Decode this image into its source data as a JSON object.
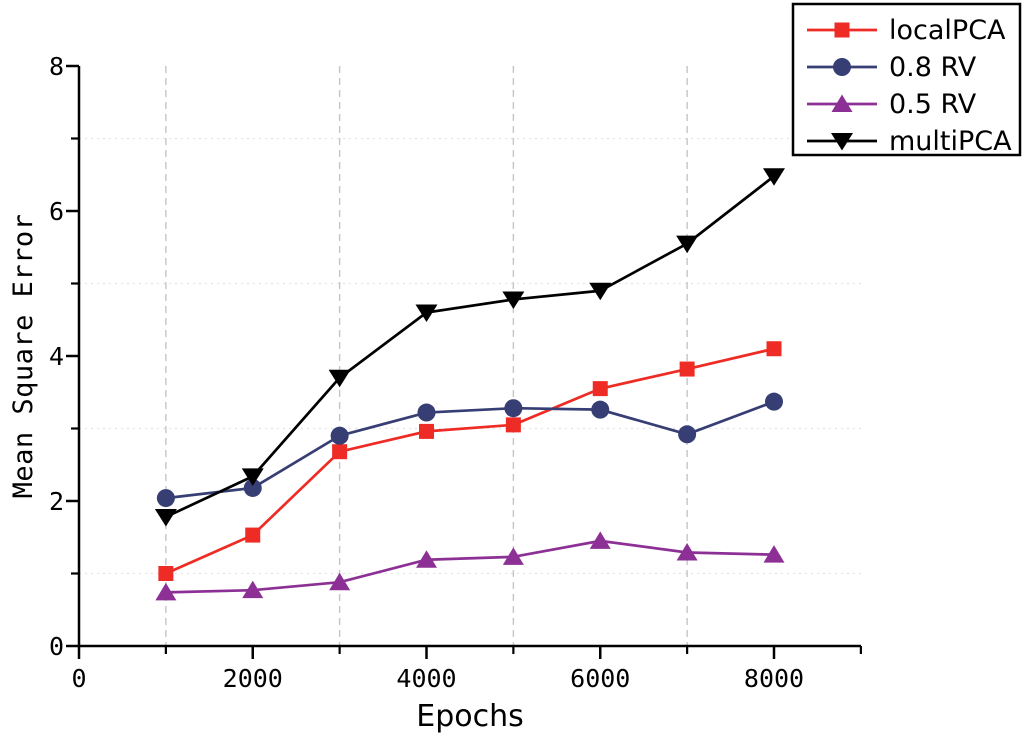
{
  "chart_data": {
    "type": "line",
    "title": "",
    "xlabel": "Epochs",
    "ylabel": "Mean Square Error",
    "xlim": [
      0,
      9000
    ],
    "ylim": [
      0,
      8
    ],
    "grid": true,
    "legend_position": "top-right",
    "x": [
      1000,
      2000,
      3000,
      4000,
      5000,
      6000,
      7000,
      8000
    ],
    "series": [
      {
        "name": "localPCA",
        "color": "#ee2b24",
        "marker": "square",
        "values": [
          1.0,
          1.53,
          2.68,
          2.96,
          3.05,
          3.55,
          3.82,
          4.1
        ]
      },
      {
        "name": "0.8 RV",
        "color": "#373e74",
        "marker": "circle",
        "values": [
          2.04,
          2.18,
          2.9,
          3.22,
          3.28,
          3.26,
          2.92,
          3.37
        ]
      },
      {
        "name": "0.5 RV",
        "color": "#8d3096",
        "marker": "triangle-up",
        "values": [
          0.74,
          0.77,
          0.88,
          1.19,
          1.23,
          1.45,
          1.29,
          1.26
        ]
      },
      {
        "name": "multiPCA",
        "color": "#000000",
        "marker": "triangle-down",
        "values": [
          1.78,
          2.34,
          3.7,
          4.6,
          4.78,
          4.9,
          5.55,
          6.48
        ]
      }
    ],
    "x_major_ticks": [
      0,
      2000,
      4000,
      6000,
      8000
    ],
    "x_minor_ticks": [
      1000,
      3000,
      5000,
      7000,
      9000
    ],
    "y_major_ticks": [
      0,
      2,
      4,
      6,
      8
    ],
    "y_minor_ticks": [
      1,
      3,
      5,
      7
    ],
    "x_gridlines": [
      1000,
      3000,
      5000,
      7000
    ],
    "y_gridlines": [
      1,
      3,
      5,
      7
    ],
    "grid_color_vertical": "#c5c5c5",
    "grid_color_horizontal": "#e4e4e4",
    "axis_color": "#000000",
    "background_color": "#ffffff"
  }
}
